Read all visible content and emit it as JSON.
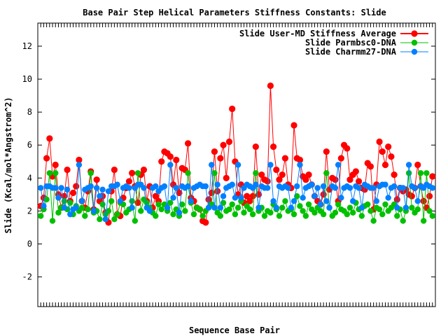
{
  "chart_data": {
    "type": "line",
    "title": "Base Pair Step Helical Parameters Stiffness Constants: Slide",
    "xlabel": "Sequence Base Pair",
    "ylabel": "Slide (Kcal/mol*Angstrom^2)",
    "ylim": [
      -3.8,
      13.4
    ],
    "yticks": [
      -2,
      0,
      2,
      4,
      6,
      8,
      10,
      12
    ],
    "xlim": [
      0,
      135
    ],
    "grid": false,
    "legend_position": "top-right",
    "series": [
      {
        "name": "Slide User-MD Stiffness Average",
        "color": "#ff0000",
        "x": [
          1,
          2,
          3,
          4,
          5,
          6,
          7,
          8,
          9,
          10,
          11,
          12,
          13,
          14,
          15,
          16,
          17,
          18,
          19,
          20,
          21,
          22,
          23,
          24,
          25,
          26,
          27,
          28,
          29,
          30,
          31,
          32,
          33,
          34,
          35,
          36,
          37,
          38,
          39,
          40,
          41,
          42,
          43,
          44,
          45,
          46,
          47,
          48,
          49,
          50,
          51,
          52,
          53,
          54,
          55,
          56,
          57,
          58,
          59,
          60,
          61,
          62,
          63,
          64,
          65,
          66,
          67,
          68,
          69,
          70,
          71,
          72,
          73,
          74,
          75,
          76,
          77,
          78,
          79,
          80,
          81,
          82,
          83,
          84,
          85,
          86,
          87,
          88,
          89,
          90,
          91,
          92,
          93,
          94,
          95,
          96,
          97,
          98,
          99,
          100,
          101,
          102,
          103,
          104,
          105,
          106,
          107,
          108,
          109,
          110,
          111,
          112,
          113,
          114,
          115,
          116,
          117,
          118,
          119,
          120,
          121,
          122,
          123,
          124,
          125,
          126,
          127,
          128,
          129,
          130,
          131,
          132,
          133,
          134
        ],
        "values": [
          2.3,
          2.8,
          5.2,
          6.4,
          4.1,
          4.8,
          3.0,
          2.2,
          2.9,
          4.5,
          2.6,
          3.1,
          3.5,
          5.1,
          2.6,
          2.2,
          3.2,
          4.4,
          2.1,
          3.9,
          2.6,
          2.9,
          1.9,
          1.3,
          3.2,
          4.5,
          1.8,
          1.7,
          2.8,
          3.4,
          3.8,
          4.3,
          3.5,
          2.5,
          4.2,
          4.5,
          2.6,
          3.5,
          2.2,
          2.9,
          2.6,
          5.0,
          5.6,
          5.5,
          5.3,
          3.6,
          5.1,
          3.1,
          4.6,
          4.5,
          6.1,
          2.8,
          2.6,
          2.2,
          2.1,
          1.4,
          1.3,
          2.7,
          3.1,
          5.6,
          3.2,
          5.2,
          6.0,
          4.0,
          6.2,
          8.2,
          5.0,
          3.0,
          3.6,
          2.5,
          2.9,
          2.6,
          2.9,
          5.9,
          3.0,
          4.2,
          3.9,
          3.8,
          9.6,
          5.9,
          4.5,
          3.9,
          4.2,
          5.2,
          3.6,
          3.4,
          7.2,
          5.2,
          5.1,
          4.1,
          3.9,
          4.2,
          3.6,
          2.9,
          2.6,
          2.4,
          3.0,
          5.6,
          3.3,
          4.0,
          3.9,
          2.6,
          5.2,
          6.0,
          5.8,
          3.9,
          4.2,
          4.4,
          3.8,
          3.4,
          3.3,
          4.9,
          4.7,
          2.1,
          3.6,
          6.2,
          5.6,
          4.8,
          5.9,
          5.3,
          4.2,
          2.7,
          3.4,
          3.2,
          3.3,
          3.0,
          2.9,
          3.4,
          4.8,
          3.5,
          2.6,
          2.2,
          2.9,
          4.1
        ]
      },
      {
        "name": "Slide Parmbsc0-DNA",
        "color": "#00c000",
        "x": [
          1,
          2,
          3,
          4,
          5,
          6,
          7,
          8,
          9,
          10,
          11,
          12,
          13,
          14,
          15,
          16,
          17,
          18,
          19,
          20,
          21,
          22,
          23,
          24,
          25,
          26,
          27,
          28,
          29,
          30,
          31,
          32,
          33,
          34,
          35,
          36,
          37,
          38,
          39,
          40,
          41,
          42,
          43,
          44,
          45,
          46,
          47,
          48,
          49,
          50,
          51,
          52,
          53,
          54,
          55,
          56,
          57,
          58,
          59,
          60,
          61,
          62,
          63,
          64,
          65,
          66,
          67,
          68,
          69,
          70,
          71,
          72,
          73,
          74,
          75,
          76,
          77,
          78,
          79,
          80,
          81,
          82,
          83,
          84,
          85,
          86,
          87,
          88,
          89,
          90,
          91,
          92,
          93,
          94,
          95,
          96,
          97,
          98,
          99,
          100,
          101,
          102,
          103,
          104,
          105,
          106,
          107,
          108,
          109,
          110,
          111,
          112,
          113,
          114,
          115,
          116,
          117,
          118,
          119,
          120,
          121,
          122,
          123,
          124,
          125,
          126,
          127,
          128,
          129,
          130,
          131,
          132,
          133,
          134
        ],
        "values": [
          1.7,
          2.1,
          2.7,
          4.3,
          1.4,
          4.3,
          1.9,
          2.2,
          2.6,
          2.1,
          2.5,
          1.8,
          2.3,
          2.0,
          2.2,
          1.7,
          2.1,
          4.3,
          1.9,
          2.0,
          1.5,
          2.4,
          1.8,
          2.0,
          2.6,
          1.5,
          1.8,
          2.5,
          2.4,
          1.9,
          2.1,
          2.6,
          1.4,
          4.3,
          2.0,
          2.7,
          2.5,
          2.2,
          1.9,
          1.7,
          2.4,
          2.1,
          2.4,
          2.0,
          2.5,
          1.8,
          2.1,
          1.7,
          2.4,
          2.0,
          4.3,
          2.5,
          1.8,
          2.2,
          2.1,
          1.7,
          2.0,
          2.2,
          2.4,
          4.3,
          1.9,
          1.7,
          2.5,
          2.0,
          2.1,
          2.4,
          1.8,
          2.2,
          2.6,
          1.9,
          2.3,
          2.1,
          1.8,
          4.3,
          2.0,
          2.2,
          1.7,
          2.0,
          1.9,
          2.4,
          2.1,
          1.7,
          2.2,
          2.6,
          2.0,
          2.1,
          1.8,
          2.9,
          2.3,
          2.0,
          1.7,
          2.4,
          2.1,
          1.9,
          2.2,
          2.0,
          1.8,
          4.3,
          2.2,
          1.7,
          1.9,
          2.4,
          2.1,
          2.0,
          1.8,
          2.2,
          1.9,
          2.5,
          2.1,
          1.7,
          2.3,
          2.4,
          2.0,
          1.4,
          2.2,
          2.1,
          1.8,
          2.4,
          2.0,
          2.2,
          2.4,
          1.7,
          2.1,
          1.4,
          2.0,
          4.3,
          2.2,
          1.9,
          2.1,
          4.3,
          1.4,
          4.3,
          2.0,
          1.7
        ]
      },
      {
        "name": "Slide Charmm27-DNA",
        "color": "#0080ff",
        "x": [
          1,
          2,
          3,
          4,
          5,
          6,
          7,
          8,
          9,
          10,
          11,
          12,
          13,
          14,
          15,
          16,
          17,
          18,
          19,
          20,
          21,
          22,
          23,
          24,
          25,
          26,
          27,
          28,
          29,
          30,
          31,
          32,
          33,
          34,
          35,
          36,
          37,
          38,
          39,
          40,
          41,
          42,
          43,
          44,
          45,
          46,
          47,
          48,
          49,
          50,
          51,
          52,
          53,
          54,
          55,
          56,
          57,
          58,
          59,
          60,
          61,
          62,
          63,
          64,
          65,
          66,
          67,
          68,
          69,
          70,
          71,
          72,
          73,
          74,
          75,
          76,
          77,
          78,
          79,
          80,
          81,
          82,
          83,
          84,
          85,
          86,
          87,
          88,
          89,
          90,
          91,
          92,
          93,
          94,
          95,
          96,
          97,
          98,
          99,
          100,
          101,
          102,
          103,
          104,
          105,
          106,
          107,
          108,
          109,
          110,
          111,
          112,
          113,
          114,
          115,
          116,
          117,
          118,
          119,
          120,
          121,
          122,
          123,
          124,
          125,
          126,
          127,
          128,
          129,
          130,
          131,
          132,
          133,
          134
        ],
        "values": [
          3.4,
          2.3,
          3.5,
          3.5,
          3.4,
          3.4,
          2.8,
          3.4,
          2.2,
          3.3,
          1.8,
          2.1,
          2.2,
          4.8,
          2.6,
          3.3,
          3.4,
          3.5,
          2.0,
          3.4,
          2.9,
          3.3,
          1.5,
          3.2,
          3.5,
          3.5,
          3.6,
          2.6,
          3.4,
          3.5,
          3.4,
          2.2,
          3.4,
          3.6,
          3.6,
          3.4,
          2.2,
          2.0,
          3.4,
          3.5,
          3.2,
          3.4,
          3.5,
          2.2,
          4.8,
          2.8,
          3.4,
          1.9,
          3.5,
          3.4,
          3.5,
          2.6,
          3.4,
          3.5,
          3.6,
          3.5,
          3.5,
          2.2,
          4.8,
          2.2,
          3.6,
          2.2,
          2.9,
          3.4,
          3.5,
          3.6,
          2.8,
          4.8,
          2.8,
          3.4,
          3.6,
          3.5,
          3.4,
          3.6,
          2.2,
          3.5,
          3.4,
          3.4,
          4.8,
          2.6,
          2.2,
          3.5,
          3.4,
          3.5,
          3.4,
          2.2,
          2.6,
          3.5,
          4.8,
          2.8,
          3.4,
          3.5,
          3.6,
          2.9,
          3.4,
          2.4,
          3.5,
          2.6,
          2.2,
          3.5,
          3.4,
          4.8,
          2.8,
          3.4,
          3.5,
          3.4,
          2.6,
          3.5,
          3.4,
          2.2,
          3.6,
          3.5,
          3.4,
          3.4,
          2.6,
          3.5,
          3.6,
          3.6,
          2.8,
          3.4,
          3.5,
          2.2,
          3.4,
          3.4,
          2.2,
          4.8,
          3.5,
          3.4,
          2.6,
          3.5,
          3.4,
          3.6,
          3.5,
          3.4
        ]
      }
    ]
  }
}
